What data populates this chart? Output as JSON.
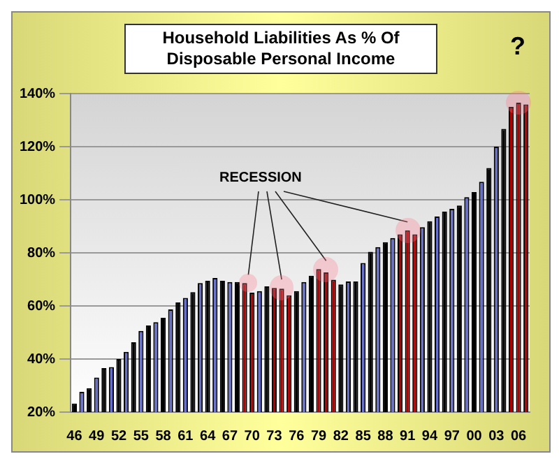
{
  "chart_data": {
    "type": "bar",
    "title": "Household Liabilities As % Of Disposable Personal Income",
    "categories": [
      "46",
      null,
      null,
      "49",
      null,
      null,
      "52",
      null,
      null,
      "55",
      null,
      null,
      "58",
      null,
      null,
      "61",
      null,
      null,
      "64",
      null,
      null,
      "67",
      null,
      null,
      "70",
      null,
      null,
      "73",
      null,
      null,
      "76",
      null,
      null,
      "79",
      null,
      null,
      "82",
      null,
      null,
      "85",
      null,
      null,
      "88",
      null,
      null,
      "91",
      null,
      null,
      "94",
      null,
      null,
      "97",
      null,
      null,
      "00",
      null,
      null,
      "03",
      null,
      null,
      "06",
      null
    ],
    "values": [
      23.2,
      27.6,
      29,
      33,
      36.6,
      37,
      40,
      42.7,
      46.3,
      50.6,
      52.6,
      53.9,
      55.5,
      58.7,
      61.3,
      63,
      65.2,
      68.6,
      69.5,
      70.5,
      69.5,
      69,
      69,
      68.6,
      65,
      65.6,
      67.4,
      66.8,
      66.5,
      64,
      65.6,
      69,
      71.4,
      73.9,
      72.6,
      69.9,
      68.1,
      69.2,
      69.2,
      76.2,
      80.4,
      82.2,
      84,
      85.6,
      87,
      88.5,
      87,
      89.7,
      91.9,
      93.7,
      95.5,
      96.6,
      97.8,
      101,
      102.9,
      106.8,
      112,
      120,
      126.7,
      135,
      136.6,
      135.9
    ],
    "colors": [
      "#000000",
      "#6670cc",
      "#000000",
      "#6670cc",
      "#000000",
      "#6670cc",
      "#000000",
      "#6670cc",
      "#000000",
      "#6670cc",
      "#000000",
      "#6670cc",
      "#000000",
      "#6670cc",
      "#000000",
      "#6670cc",
      "#000000",
      "#6670cc",
      "#000000",
      "#6670cc",
      "#000000",
      "#6670cc",
      "#000000",
      "#b00000",
      "#b00000",
      "#6670cc",
      "#000000",
      "#b00000",
      "#b00000",
      "#b00000",
      "#000000",
      "#6670cc",
      "#000000",
      "#b00000",
      "#b00000",
      "#b00000",
      "#000000",
      "#6670cc",
      "#000000",
      "#6670cc",
      "#000000",
      "#6670cc",
      "#000000",
      "#6670cc",
      "#b00000",
      "#b00000",
      "#b00000",
      "#6670cc",
      "#000000",
      "#6670cc",
      "#000000",
      "#6670cc",
      "#000000",
      "#6670cc",
      "#000000",
      "#6670cc",
      "#000000",
      "#6670cc",
      "#000000",
      "#b00000",
      "#b00000",
      "#b00000"
    ],
    "ylim": [
      20,
      140
    ],
    "yticks": [
      {
        "value": 20,
        "label": "20%"
      },
      {
        "value": 40,
        "label": "40%"
      },
      {
        "value": 60,
        "label": "60%"
      },
      {
        "value": 80,
        "label": "80%"
      },
      {
        "value": 100,
        "label": "100%"
      },
      {
        "value": 120,
        "label": "120%"
      },
      {
        "value": 140,
        "label": "140%"
      }
    ],
    "grid": "y",
    "annotations": [
      "RECESSION",
      "?"
    ]
  }
}
